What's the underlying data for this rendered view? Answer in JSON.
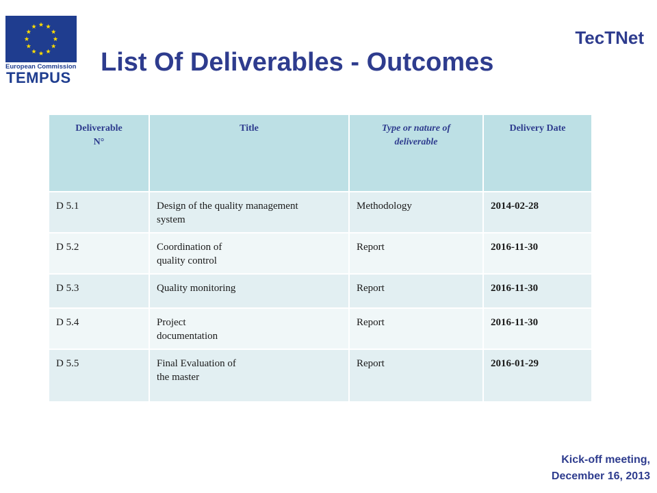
{
  "logo": {
    "line1": "European Commission",
    "line2": "TEMPUS",
    "icon": "eu-flag-icon",
    "flag_color": "#1f3d8f",
    "star_color": "#ffdd00"
  },
  "slide": {
    "title": "List Of Deliverables - Outcomes",
    "brand": "TecTNet",
    "title_color": "#2e3c8e"
  },
  "table": {
    "header_color": "#bde0e5",
    "row_color_a": "#e2eff2",
    "row_color_b": "#f0f7f8",
    "headers": [
      {
        "line1": "Deliverable",
        "line2": "N°"
      },
      {
        "line1": "Title",
        "line2": ""
      },
      {
        "line1": "Type or nature of",
        "line2": "deliverable"
      },
      {
        "line1": "Delivery Date",
        "line2": ""
      }
    ],
    "rows": [
      {
        "num": "D 5.1",
        "title1": "Design of the quality management",
        "title2": "system",
        "type": "Methodology",
        "date": "2014-02-28"
      },
      {
        "num": "D 5.2",
        "title1": "Coordination of",
        "title2": "quality control",
        "type": "Report",
        "date": "2016-11-30"
      },
      {
        "num": "D 5.3",
        "title1": "Quality monitoring",
        "title2": "",
        "type": "Report",
        "date": "2016-11-30"
      },
      {
        "num": "D 5.4",
        "title1": "Project",
        "title2": "documentation",
        "type": "Report",
        "date": "2016-11-30"
      },
      {
        "num": "D 5.5",
        "title1": "Final Evaluation  of",
        "title2": "the master",
        "type": "Report",
        "date": "2016-01-29"
      }
    ]
  },
  "footer": {
    "line1": "Kick-off meeting,",
    "line2": "December 16, 2013"
  }
}
